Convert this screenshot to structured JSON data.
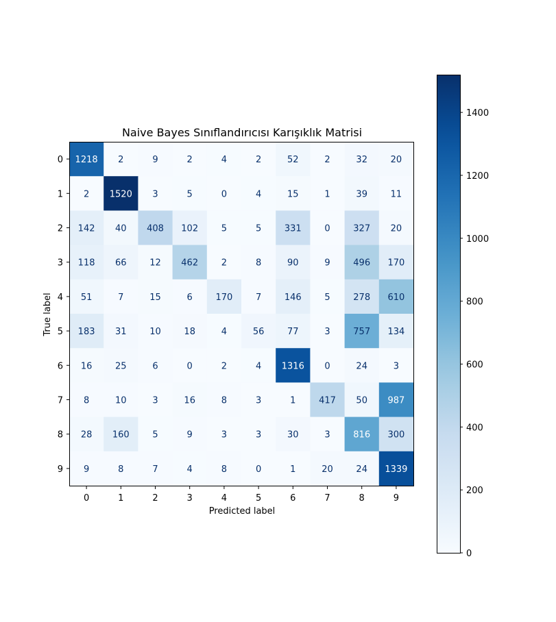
{
  "chart_data": {
    "type": "heatmap",
    "title": "Naive Bayes Sınıflandırıcısı Karışıklık Matrisi",
    "xlabel": "Predicted label",
    "ylabel": "True label",
    "x_ticks": [
      "0",
      "1",
      "2",
      "3",
      "4",
      "5",
      "6",
      "7",
      "8",
      "9"
    ],
    "y_ticks": [
      "0",
      "1",
      "2",
      "3",
      "4",
      "5",
      "6",
      "7",
      "8",
      "9"
    ],
    "values": [
      [
        1218,
        2,
        9,
        2,
        4,
        2,
        52,
        2,
        32,
        20
      ],
      [
        2,
        1520,
        3,
        5,
        0,
        4,
        15,
        1,
        39,
        11
      ],
      [
        142,
        40,
        408,
        102,
        5,
        5,
        331,
        0,
        327,
        20
      ],
      [
        118,
        66,
        12,
        462,
        2,
        8,
        90,
        9,
        496,
        170
      ],
      [
        51,
        7,
        15,
        6,
        170,
        7,
        146,
        5,
        278,
        610
      ],
      [
        183,
        31,
        10,
        18,
        4,
        56,
        77,
        3,
        757,
        134
      ],
      [
        16,
        25,
        6,
        0,
        2,
        4,
        1316,
        0,
        24,
        3
      ],
      [
        8,
        10,
        3,
        16,
        8,
        3,
        1,
        417,
        50,
        987
      ],
      [
        28,
        160,
        5,
        9,
        3,
        3,
        30,
        3,
        816,
        300
      ],
      [
        9,
        8,
        7,
        4,
        8,
        0,
        1,
        20,
        24,
        1339
      ]
    ],
    "colormap": "Blues",
    "color_low": "#f7fbff",
    "color_high": "#08306b",
    "text_dark": "#08306b",
    "text_light": "#ffffff",
    "vmin": 0,
    "vmax": 1520,
    "colorbar_ticks": [
      "0",
      "200",
      "400",
      "600",
      "800",
      "1000",
      "1200",
      "1400"
    ],
    "colorbar_tick_values": [
      0,
      200,
      400,
      600,
      800,
      1000,
      1200,
      1400
    ],
    "grid": false
  }
}
